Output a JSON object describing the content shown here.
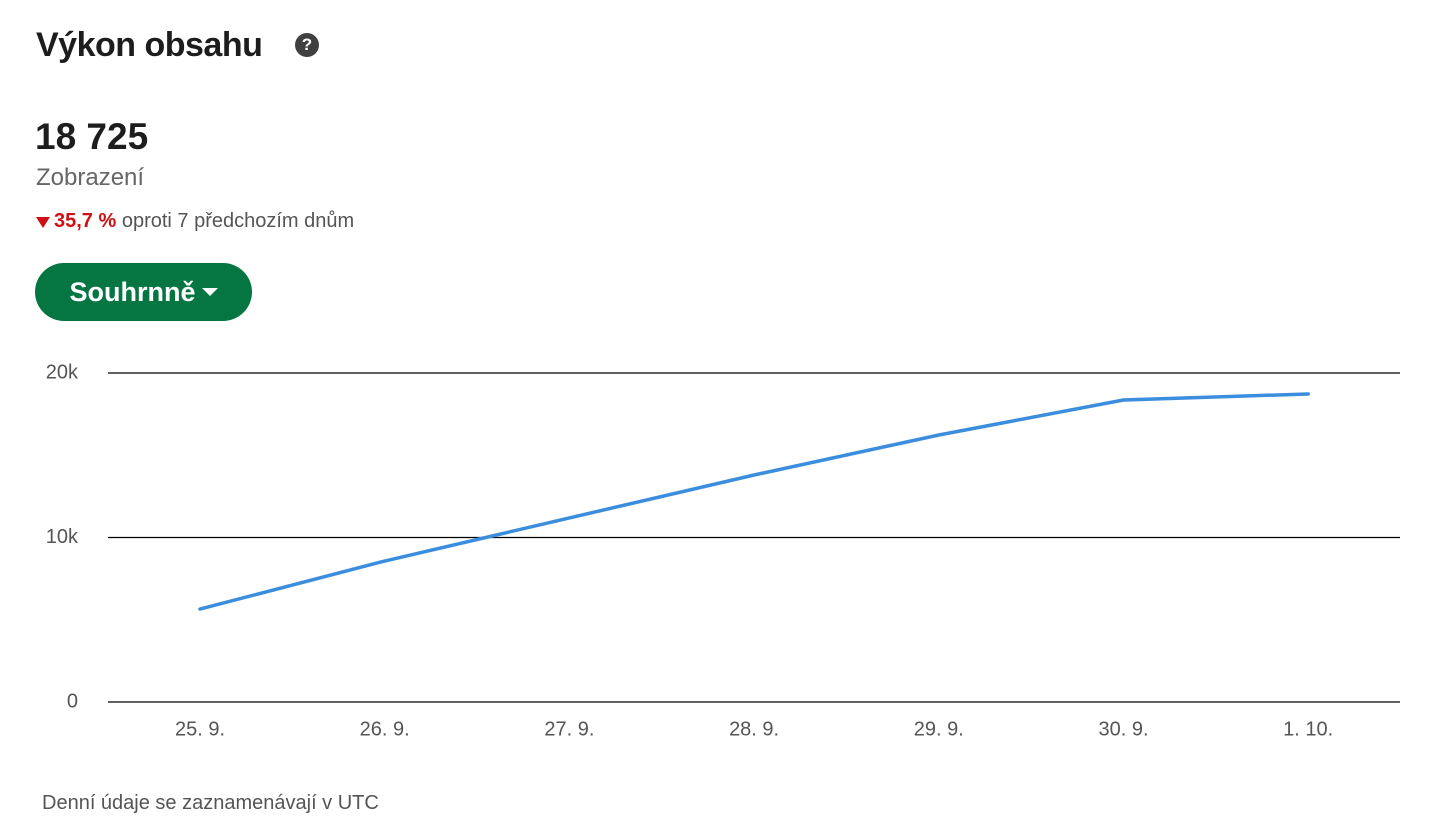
{
  "header": {
    "title": "Výkon obsahu"
  },
  "metric": {
    "value": "18 725",
    "label": "Zobrazení",
    "change": "35,7 %",
    "change_text": "oproti 7 předchozím dnům"
  },
  "button": {
    "label": "Souhrnně"
  },
  "chart_data": {
    "type": "line",
    "categories": [
      "25. 9.",
      "26. 9.",
      "27. 9.",
      "28. 9.",
      "29. 9.",
      "30. 9.",
      "1. 10."
    ],
    "series": [
      {
        "color": "#3b8ddd",
        "values": [
          5650,
          8570,
          11190,
          13800,
          16230,
          18360,
          18725
        ]
      }
    ],
    "ylim": [
      0,
      20000
    ],
    "yticks": [
      0,
      {
        "value": 10000,
        "label": "10k"
      },
      {
        "value": 20000,
        "label": "20k"
      }
    ],
    "grid": true
  },
  "footnote": "Denní údaje se zaznamenávají v UTC"
}
